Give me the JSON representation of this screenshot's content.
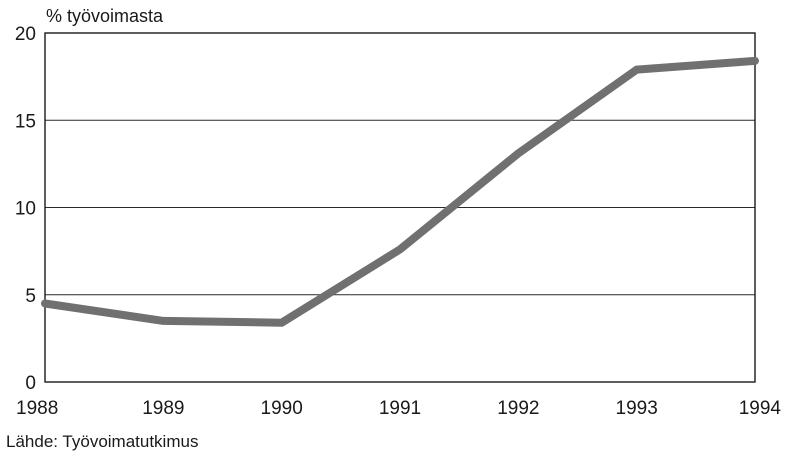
{
  "chart_data": {
    "type": "line",
    "title": "",
    "ylabel": "% työvoimasta",
    "xlabel": "",
    "x": [
      "1988",
      "1989",
      "1990",
      "1991",
      "1992",
      "1993",
      "1994"
    ],
    "y_ticks": [
      "0",
      "5",
      "10",
      "15",
      "20"
    ],
    "ylim": [
      0,
      20
    ],
    "grid": "horizontal",
    "series": [
      {
        "values": [
          4.5,
          3.5,
          3.4,
          7.6,
          13.1,
          17.9,
          18.4
        ]
      }
    ],
    "line_color": "#707070",
    "source": "Lähde: Työvoimatutkimus"
  }
}
